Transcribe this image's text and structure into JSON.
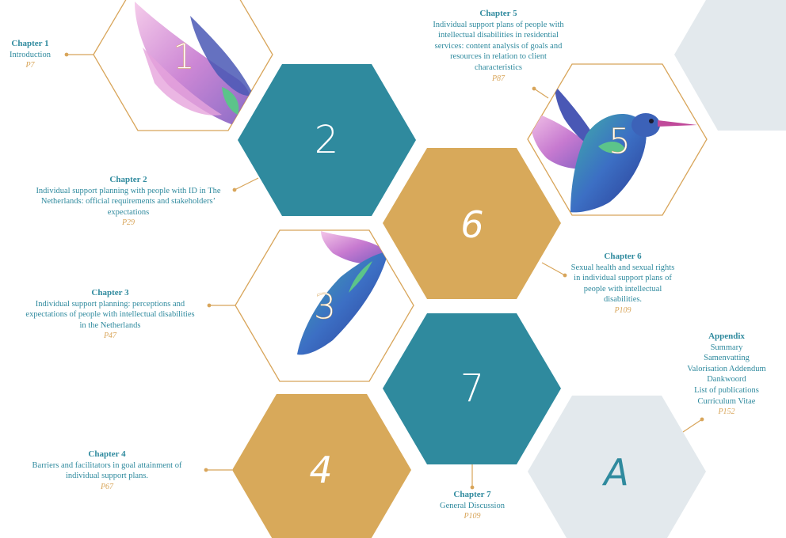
{
  "colors": {
    "teal": "#2f8a9e",
    "gold": "#d8a95a",
    "outline": "#d8a55a",
    "grey": "#e3e9ed",
    "text_teal": "#2f8a9e",
    "page_gold": "#d8a55a"
  },
  "hexagons": [
    {
      "id": "1",
      "label": "1",
      "style": "outline-bird"
    },
    {
      "id": "2",
      "label": "2",
      "style": "teal"
    },
    {
      "id": "3",
      "label": "3",
      "style": "outline-bird"
    },
    {
      "id": "4",
      "label": "4",
      "style": "gold"
    },
    {
      "id": "5",
      "label": "5",
      "style": "outline-bird"
    },
    {
      "id": "6",
      "label": "6",
      "style": "gold"
    },
    {
      "id": "7",
      "label": "7",
      "style": "teal"
    },
    {
      "id": "A",
      "label": "A",
      "style": "grey"
    }
  ],
  "chapters": {
    "c1": {
      "title": "Chapter 1",
      "desc": "Introduction",
      "page": "P7"
    },
    "c2": {
      "title": "Chapter 2",
      "desc": "Individual support planning with people with ID in The Netherlands: official requirements and stakeholders’ expectations",
      "page": "P29"
    },
    "c3": {
      "title": "Chapter 3",
      "desc": "Individual support planning: perceptions and expectations of people with intellectual disabilities in the Netherlands",
      "page": "P47"
    },
    "c4": {
      "title": "Chapter 4",
      "desc": "Barriers and facilitators in goal attainment of individual support plans.",
      "page": "P67"
    },
    "c5": {
      "title": "Chapter 5",
      "desc": "Individual support plans of people with intellectual disabilities in residential services: content analysis of goals and resources in relation to client characteristics",
      "page": "P87"
    },
    "c6": {
      "title": "Chapter 6",
      "desc": "Sexual health and sexual rights in individual support plans of people with intellectual disabilities.",
      "page": "P109"
    },
    "c7": {
      "title": "Chapter 7",
      "desc": "General Discussion",
      "page": "P109"
    }
  },
  "appendix": {
    "title": "Appendix",
    "items": [
      "Summary",
      "Samenvatting",
      "Valorisation Addendum",
      "Dankwoord",
      "List of publications",
      "Curriculum Vitae"
    ],
    "page": "P152"
  }
}
